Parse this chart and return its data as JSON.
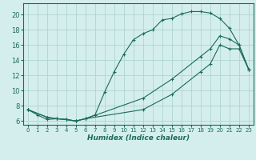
{
  "title": "",
  "xlabel": "Humidex (Indice chaleur)",
  "bg_color": "#d4eeed",
  "grid_color": "#aed4d0",
  "line_color": "#1a6b5a",
  "xlim": [
    -0.5,
    23.5
  ],
  "ylim": [
    5.5,
    21.5
  ],
  "xticks": [
    0,
    1,
    2,
    3,
    4,
    5,
    6,
    7,
    8,
    9,
    10,
    11,
    12,
    13,
    14,
    15,
    16,
    17,
    18,
    19,
    20,
    21,
    22,
    23
  ],
  "yticks": [
    6,
    8,
    10,
    12,
    14,
    16,
    18,
    20
  ],
  "line1_x": [
    0,
    1,
    2,
    3,
    4,
    5,
    6,
    7,
    8,
    9,
    10,
    11,
    12,
    13,
    14,
    15,
    16,
    17,
    18,
    19,
    20,
    21,
    22,
    23
  ],
  "line1_y": [
    7.5,
    6.8,
    6.2,
    6.3,
    6.2,
    6.0,
    6.3,
    6.8,
    9.8,
    12.5,
    14.8,
    16.7,
    17.5,
    18.0,
    19.3,
    19.5,
    20.1,
    20.4,
    20.4,
    20.2,
    19.5,
    18.2,
    16.0,
    12.8
  ],
  "line2_x": [
    0,
    2,
    3,
    4,
    5,
    6,
    12,
    15,
    18,
    19,
    20,
    21,
    22,
    23
  ],
  "line2_y": [
    7.5,
    6.5,
    6.3,
    6.2,
    6.0,
    6.3,
    9.0,
    11.5,
    14.5,
    15.5,
    17.2,
    16.8,
    16.0,
    12.8
  ],
  "line3_x": [
    0,
    2,
    3,
    4,
    5,
    6,
    12,
    15,
    18,
    19,
    20,
    21,
    22,
    23
  ],
  "line3_y": [
    7.5,
    6.5,
    6.3,
    6.2,
    6.0,
    6.3,
    7.5,
    9.5,
    12.5,
    13.5,
    16.0,
    15.5,
    15.5,
    12.8
  ]
}
